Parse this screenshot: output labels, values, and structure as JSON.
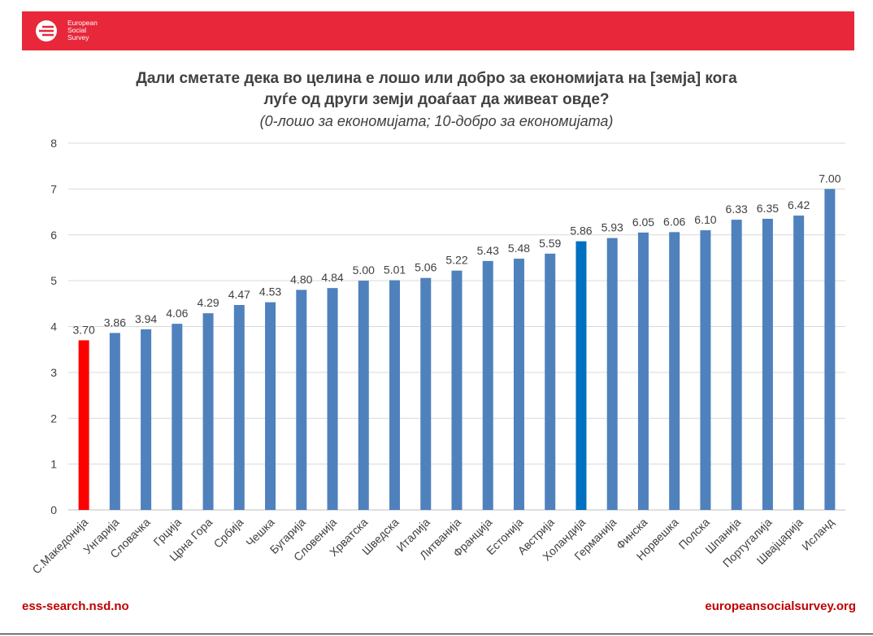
{
  "header": {
    "brand_color": "#e8273b",
    "logo_lines": [
      "European",
      "Social",
      "Survey"
    ]
  },
  "title": {
    "line1": "Дали сметате дека во целина е лошо или добро за економијата на [земја] кога",
    "line2": "луѓе од други земји доаѓаат да живеат овде?",
    "subtitle": "(0-лошо за економијата; 10-добро за економијата)"
  },
  "footer": {
    "left": "ess-search.nsd.no",
    "right": "europeansocialsurvey.org",
    "color": "#c00000"
  },
  "chart_data": {
    "type": "bar",
    "categories": [
      "С.Македонија",
      "Унгарија",
      "Словачка",
      "Грција",
      "Црна Гора",
      "Србија",
      "Чешка",
      "Бугарија",
      "Словенија",
      "Хрватска",
      "Шведска",
      "Италија",
      "Литванија",
      "Франција",
      "Естонија",
      "Австрија",
      "Холандија",
      "Германија",
      "Финска",
      "Норвешка",
      "Полска",
      "Шпанија",
      "Португалија",
      "Швајцарија",
      "Исланд"
    ],
    "values": [
      3.7,
      3.86,
      3.94,
      4.06,
      4.29,
      4.47,
      4.53,
      4.8,
      4.84,
      5.0,
      5.01,
      5.06,
      5.22,
      5.43,
      5.48,
      5.59,
      5.86,
      5.93,
      6.05,
      6.06,
      6.1,
      6.33,
      6.35,
      6.42,
      7.0
    ],
    "value_labels": [
      "3.70",
      "3.86",
      "3.94",
      "4.06",
      "4.29",
      "4.47",
      "4.53",
      "4.80",
      "4.84",
      "5.00",
      "5.01",
      "5.06",
      "5.22",
      "5.43",
      "5.48",
      "5.59",
      "5.86",
      "5.93",
      "6.05",
      "6.06",
      "6.10",
      "6.33",
      "6.35",
      "6.42",
      "7.00"
    ],
    "ylim": [
      0,
      8
    ],
    "yticks": [
      "0",
      "1",
      "2",
      "3",
      "4",
      "5",
      "6",
      "7",
      "8"
    ],
    "grid": true,
    "colors": {
      "default": "#4f81bd",
      "highlight_red": "#ff0000",
      "highlight_blue": "#0070c0",
      "grid": "#d9d9d9",
      "text": "#404040"
    },
    "highlights": {
      "С.Македонија": "highlight_red",
      "Холандија": "highlight_blue"
    }
  }
}
